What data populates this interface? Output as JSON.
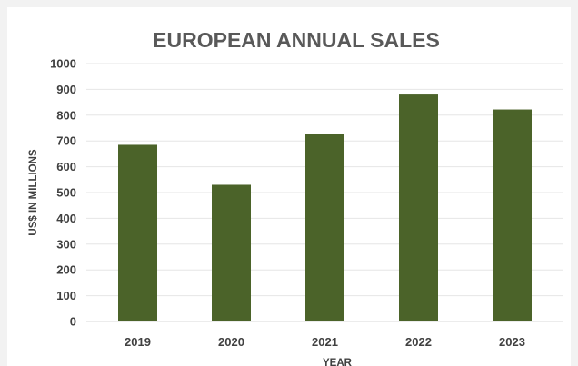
{
  "chart_data": {
    "type": "bar",
    "title": "EUROPEAN ANNUAL SALES",
    "xlabel": "YEAR",
    "ylabel": "US$ IN MILLIONS",
    "categories": [
      "2019",
      "2020",
      "2021",
      "2022",
      "2023"
    ],
    "values": [
      685,
      530,
      728,
      880,
      822
    ],
    "ylim": [
      0,
      1000
    ],
    "yticks": [
      0,
      100,
      200,
      300,
      400,
      500,
      600,
      700,
      800,
      900,
      1000
    ],
    "grid": true,
    "legend": "none",
    "bar_color": "#4b6329"
  }
}
